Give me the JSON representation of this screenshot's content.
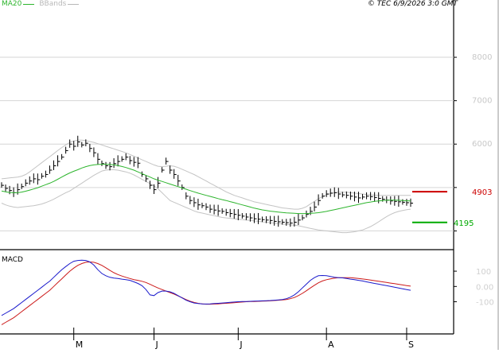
{
  "header": {
    "legend": [
      {
        "label": "MA20",
        "color": "#2db52d"
      },
      {
        "label": "BBands",
        "color": "#b8b8b8"
      }
    ],
    "copyright": "© TEC 6/9/2026 3:0 GMT"
  },
  "chart_data": [
    {
      "type": "line",
      "panel": "price",
      "title": "",
      "xlabel": "",
      "ylabel": "",
      "x_tick_labels": [
        "M",
        "J",
        "J",
        "A",
        "S"
      ],
      "x_tick_index": [
        18,
        38,
        59,
        81,
        101
      ],
      "y_ticks": [
        4000,
        5000,
        6000,
        7000,
        8000
      ],
      "y_tick_labels": [
        "",
        "",
        "6000",
        "7000",
        "8000"
      ],
      "ylim": [
        3550,
        9100
      ],
      "grid": true,
      "series": [
        {
          "name": "MA20",
          "color": "#2db52d",
          "values": [
            4920,
            4900,
            4885,
            4880,
            4880,
            4895,
            4915,
            4940,
            4965,
            4995,
            5030,
            5065,
            5100,
            5140,
            5190,
            5240,
            5290,
            5335,
            5375,
            5410,
            5450,
            5480,
            5505,
            5520,
            5530,
            5535,
            5535,
            5530,
            5520,
            5505,
            5485,
            5460,
            5430,
            5400,
            5360,
            5320,
            5280,
            5240,
            5200,
            5170,
            5140,
            5110,
            5080,
            5050,
            5020,
            4990,
            4960,
            4930,
            4900,
            4870,
            4845,
            4820,
            4795,
            4770,
            4745,
            4720,
            4700,
            4675,
            4650,
            4625,
            4600,
            4575,
            4550,
            4525,
            4505,
            4485,
            4470,
            4455,
            4445,
            4435,
            4425,
            4415,
            4410,
            4405,
            4400,
            4400,
            4400,
            4405,
            4410,
            4420,
            4435,
            4450,
            4470,
            4490,
            4510,
            4530,
            4550,
            4570,
            4590,
            4610,
            4630,
            4650,
            4665,
            4680,
            4690,
            4700,
            4705,
            4710,
            4710,
            4705,
            4700,
            4695,
            4690
          ]
        },
        {
          "name": "BBand upper",
          "color": "#c4c4c4",
          "values": [
            5200,
            5210,
            5220,
            5230,
            5240,
            5260,
            5300,
            5360,
            5430,
            5500,
            5570,
            5640,
            5710,
            5780,
            5850,
            5920,
            5980,
            6040,
            6070,
            6090,
            6090,
            6080,
            6060,
            6040,
            6010,
            5980,
            5950,
            5920,
            5890,
            5860,
            5830,
            5800,
            5760,
            5720,
            5680,
            5640,
            5600,
            5560,
            5520,
            5490,
            5480,
            5490,
            5500,
            5490,
            5460,
            5420,
            5380,
            5340,
            5300,
            5250,
            5200,
            5150,
            5100,
            5050,
            5000,
            4950,
            4900,
            4860,
            4820,
            4790,
            4760,
            4730,
            4700,
            4670,
            4650,
            4630,
            4610,
            4590,
            4570,
            4550,
            4530,
            4520,
            4510,
            4500,
            4500,
            4520,
            4560,
            4620,
            4680,
            4740,
            4790,
            4830,
            4860,
            4880,
            4890,
            4890,
            4890,
            4880,
            4870,
            4860,
            4850,
            4840,
            4830,
            4825,
            4820,
            4820,
            4820,
            4820,
            4820,
            4820,
            4820,
            4820,
            4820
          ]
        },
        {
          "name": "BBand lower",
          "color": "#c4c4c4",
          "values": [
            4640,
            4600,
            4570,
            4550,
            4540,
            4550,
            4560,
            4570,
            4580,
            4600,
            4620,
            4650,
            4690,
            4730,
            4780,
            4830,
            4880,
            4920,
            4980,
            5040,
            5100,
            5160,
            5220,
            5280,
            5330,
            5380,
            5400,
            5410,
            5410,
            5400,
            5380,
            5360,
            5330,
            5290,
            5240,
            5190,
            5140,
            5090,
            5040,
            4970,
            4880,
            4790,
            4700,
            4660,
            4620,
            4580,
            4540,
            4500,
            4460,
            4430,
            4410,
            4390,
            4370,
            4350,
            4330,
            4310,
            4300,
            4290,
            4280,
            4270,
            4260,
            4250,
            4240,
            4230,
            4220,
            4210,
            4200,
            4190,
            4180,
            4170,
            4160,
            4150,
            4140,
            4130,
            4120,
            4100,
            4080,
            4060,
            4040,
            4020,
            4010,
            4000,
            3990,
            3980,
            3970,
            3960,
            3960,
            3970,
            3980,
            4000,
            4020,
            4060,
            4100,
            4150,
            4210,
            4270,
            4330,
            4380,
            4420,
            4450,
            4470,
            4490,
            4500
          ]
        },
        {
          "name": "Price",
          "color": "#000000",
          "values": [
            5050,
            4980,
            4930,
            4880,
            4950,
            5020,
            5100,
            5150,
            5200,
            5180,
            5260,
            5300,
            5400,
            5500,
            5600,
            5700,
            5850,
            6000,
            5950,
            6050,
            5980,
            6020,
            5900,
            5800,
            5650,
            5550,
            5500,
            5480,
            5550,
            5600,
            5650,
            5700,
            5620,
            5580,
            5560,
            5300,
            5200,
            5050,
            4950,
            5100,
            5400,
            5600,
            5400,
            5300,
            5150,
            5000,
            4800,
            4700,
            4650,
            4600,
            4580,
            4550,
            4500,
            4480,
            4460,
            4450,
            4420,
            4400,
            4380,
            4360,
            4340,
            4320,
            4300,
            4280,
            4270,
            4260,
            4250,
            4240,
            4220,
            4210,
            4200,
            4190,
            4180,
            4200,
            4250,
            4300,
            4380,
            4450,
            4550,
            4700,
            4800,
            4850,
            4870,
            4880,
            4850,
            4830,
            4820,
            4800,
            4780,
            4760,
            4780,
            4800,
            4790,
            4770,
            4750,
            4730,
            4710,
            4690,
            4680,
            4670,
            4660,
            4650,
            4640
          ]
        }
      ],
      "levels": [
        {
          "value": 4903,
          "label": "4903",
          "color": "#cc0000"
        },
        {
          "value": 4195,
          "label": "4195",
          "color": "#00aa00"
        }
      ]
    },
    {
      "type": "line",
      "panel": "macd",
      "title": "MACD",
      "xlabel": "",
      "ylabel": "",
      "y_ticks": [
        100,
        0,
        -100
      ],
      "y_tick_labels": [
        "100",
        "0.00",
        "-100"
      ],
      "ylim": [
        -300,
        220
      ],
      "series": [
        {
          "name": "MACD",
          "color": "#1a1acc",
          "values": [
            -190,
            -175,
            -160,
            -145,
            -125,
            -105,
            -85,
            -65,
            -45,
            -25,
            -5,
            15,
            35,
            60,
            85,
            110,
            130,
            150,
            165,
            170,
            172,
            170,
            160,
            140,
            110,
            85,
            70,
            60,
            55,
            52,
            48,
            45,
            40,
            30,
            20,
            5,
            -20,
            -55,
            -60,
            -40,
            -30,
            -30,
            -35,
            -45,
            -60,
            -75,
            -90,
            -100,
            -108,
            -112,
            -114,
            -115,
            -114,
            -112,
            -110,
            -108,
            -106,
            -104,
            -102,
            -100,
            -99,
            -98,
            -97,
            -96,
            -95,
            -94,
            -93,
            -92,
            -90,
            -88,
            -85,
            -80,
            -70,
            -55,
            -35,
            -10,
            15,
            40,
            58,
            70,
            72,
            70,
            65,
            60,
            58,
            56,
            52,
            48,
            44,
            40,
            36,
            30,
            25,
            20,
            15,
            10,
            5,
            0,
            -5,
            -10,
            -15,
            -20,
            -25
          ]
        },
        {
          "name": "Signal",
          "color": "#cc1a1a",
          "values": [
            -250,
            -235,
            -220,
            -205,
            -185,
            -165,
            -145,
            -125,
            -105,
            -85,
            -65,
            -45,
            -25,
            0,
            25,
            50,
            75,
            100,
            120,
            138,
            150,
            158,
            160,
            158,
            150,
            138,
            122,
            105,
            90,
            78,
            68,
            60,
            52,
            45,
            40,
            34,
            26,
            14,
            2,
            -10,
            -20,
            -30,
            -40,
            -50,
            -62,
            -74,
            -86,
            -96,
            -104,
            -110,
            -114,
            -116,
            -116,
            -115,
            -114,
            -112,
            -110,
            -108,
            -106,
            -104,
            -102,
            -100,
            -99,
            -98,
            -97,
            -96,
            -95,
            -94,
            -92,
            -90,
            -88,
            -85,
            -80,
            -72,
            -60,
            -45,
            -28,
            -10,
            8,
            24,
            36,
            44,
            50,
            54,
            57,
            58,
            58,
            57,
            55,
            52,
            49,
            46,
            42,
            38,
            34,
            30,
            26,
            22,
            18,
            14,
            10,
            6,
            2
          ]
        }
      ]
    }
  ]
}
